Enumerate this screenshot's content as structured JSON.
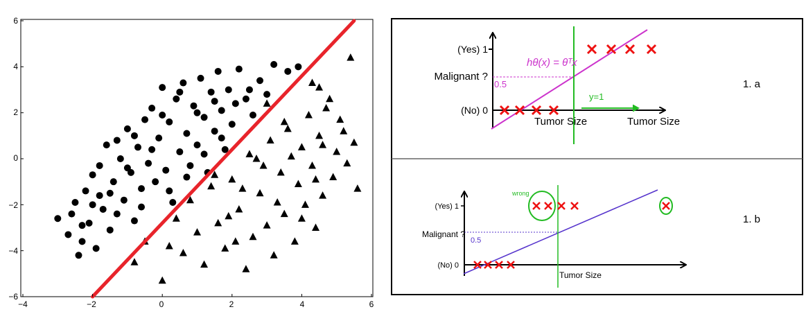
{
  "chart_data": {
    "type": "scatter",
    "xlim": [
      -4,
      6
    ],
    "ylim": [
      -6,
      6
    ],
    "x_ticks": [
      "−4",
      "−2",
      "0",
      "2",
      "4",
      "6"
    ],
    "y_ticks": [
      "6",
      "4",
      "2",
      "0",
      "−2",
      "−4",
      "−6"
    ],
    "series": [
      {
        "marker": "circle",
        "color": "#000000",
        "points": [
          [
            -3.0,
            -2.6
          ],
          [
            -2.7,
            -3.3
          ],
          [
            -2.6,
            -2.4
          ],
          [
            -2.4,
            -4.2
          ],
          [
            -2.3,
            -3.6
          ],
          [
            -2.2,
            -1.4
          ],
          [
            -2.1,
            -2.8
          ],
          [
            -2.0,
            -0.7
          ],
          [
            -1.9,
            -3.9
          ],
          [
            -1.8,
            -1.6
          ],
          [
            -1.7,
            -2.2
          ],
          [
            -1.6,
            0.6
          ],
          [
            -1.5,
            -3.1
          ],
          [
            -1.4,
            -1.0
          ],
          [
            -1.3,
            -2.4
          ],
          [
            -1.2,
            0.0
          ],
          [
            -1.1,
            -1.8
          ],
          [
            -1.0,
            1.3
          ],
          [
            -0.9,
            -0.6
          ],
          [
            -0.8,
            -2.7
          ],
          [
            -0.7,
            0.5
          ],
          [
            -0.6,
            -1.3
          ],
          [
            -0.5,
            1.7
          ],
          [
            -0.4,
            -0.2
          ],
          [
            -0.3,
            2.2
          ],
          [
            -0.2,
            -1.0
          ],
          [
            -0.1,
            0.9
          ],
          [
            0.0,
            3.1
          ],
          [
            0.1,
            -0.5
          ],
          [
            0.2,
            1.6
          ],
          [
            0.3,
            -1.9
          ],
          [
            0.4,
            2.6
          ],
          [
            0.5,
            0.3
          ],
          [
            0.6,
            3.3
          ],
          [
            0.7,
            1.1
          ],
          [
            0.8,
            -0.3
          ],
          [
            0.9,
            2.3
          ],
          [
            1.0,
            0.6
          ],
          [
            1.1,
            3.5
          ],
          [
            1.2,
            1.8
          ],
          [
            1.3,
            -0.6
          ],
          [
            1.4,
            2.9
          ],
          [
            1.5,
            1.2
          ],
          [
            1.6,
            3.8
          ],
          [
            1.7,
            2.1
          ],
          [
            1.8,
            0.4
          ],
          [
            1.9,
            3.0
          ],
          [
            2.0,
            1.5
          ],
          [
            2.2,
            3.9
          ],
          [
            2.4,
            2.6
          ],
          [
            2.6,
            1.9
          ],
          [
            2.8,
            3.4
          ],
          [
            3.0,
            2.8
          ],
          [
            3.2,
            4.1
          ],
          [
            3.6,
            3.8
          ],
          [
            3.9,
            4.0
          ],
          [
            -2.5,
            -1.9
          ],
          [
            -2.3,
            -2.9
          ],
          [
            -2.0,
            -2.0
          ],
          [
            -1.8,
            -0.3
          ],
          [
            -1.5,
            -1.5
          ],
          [
            -1.3,
            0.8
          ],
          [
            -1.0,
            -0.4
          ],
          [
            -0.8,
            1.0
          ],
          [
            -0.6,
            -2.1
          ],
          [
            -0.3,
            0.4
          ],
          [
            0.0,
            1.9
          ],
          [
            0.2,
            -1.4
          ],
          [
            0.5,
            2.9
          ],
          [
            0.7,
            -0.8
          ],
          [
            1.0,
            2.0
          ],
          [
            1.2,
            0.2
          ],
          [
            1.5,
            2.5
          ],
          [
            1.7,
            0.9
          ],
          [
            2.1,
            2.4
          ],
          [
            2.5,
            3.0
          ]
        ]
      },
      {
        "marker": "triangle",
        "color": "#000000",
        "points": [
          [
            -0.8,
            -4.5
          ],
          [
            -0.5,
            -3.6
          ],
          [
            0.0,
            -5.3
          ],
          [
            0.2,
            -3.8
          ],
          [
            0.4,
            -2.6
          ],
          [
            0.6,
            -4.1
          ],
          [
            0.8,
            -1.8
          ],
          [
            1.0,
            -3.2
          ],
          [
            1.2,
            -4.6
          ],
          [
            1.4,
            -1.2
          ],
          [
            1.6,
            -2.8
          ],
          [
            1.8,
            -3.9
          ],
          [
            2.0,
            -0.9
          ],
          [
            2.2,
            -2.2
          ],
          [
            2.4,
            -4.8
          ],
          [
            2.5,
            0.2
          ],
          [
            2.6,
            -3.4
          ],
          [
            2.8,
            -1.5
          ],
          [
            3.0,
            -2.9
          ],
          [
            3.1,
            0.8
          ],
          [
            3.2,
            -4.2
          ],
          [
            3.4,
            -0.6
          ],
          [
            3.5,
            -2.4
          ],
          [
            3.6,
            1.3
          ],
          [
            3.8,
            -3.6
          ],
          [
            3.9,
            -1.1
          ],
          [
            4.0,
            0.5
          ],
          [
            4.1,
            -2.0
          ],
          [
            4.2,
            1.9
          ],
          [
            4.3,
            -0.3
          ],
          [
            4.4,
            -3.0
          ],
          [
            4.5,
            1.0
          ],
          [
            4.6,
            -1.6
          ],
          [
            4.8,
            2.6
          ],
          [
            4.9,
            -0.8
          ],
          [
            5.0,
            0.3
          ],
          [
            5.1,
            1.7
          ],
          [
            5.3,
            -0.2
          ],
          [
            5.4,
            4.4
          ],
          [
            5.5,
            0.7
          ],
          [
            5.6,
            -1.3
          ],
          [
            1.9,
            -2.5
          ],
          [
            2.3,
            -1.3
          ],
          [
            2.7,
            0.0
          ],
          [
            3.3,
            -1.9
          ],
          [
            3.7,
            0.1
          ],
          [
            4.4,
            -0.9
          ],
          [
            4.7,
            2.2
          ],
          [
            5.2,
            1.2
          ],
          [
            2.1,
            -3.6
          ],
          [
            2.9,
            -0.3
          ],
          [
            3.5,
            1.6
          ],
          [
            4.0,
            -2.6
          ],
          [
            4.6,
            0.6
          ],
          [
            1.5,
            -0.7
          ],
          [
            3.0,
            2.4
          ],
          [
            4.3,
            3.3
          ],
          [
            4.5,
            3.1
          ]
        ]
      }
    ],
    "line": {
      "color": "#e8242b",
      "from": [
        -2,
        -6
      ],
      "to": [
        5.5,
        6
      ]
    }
  },
  "panel_a": {
    "yes_label": "(Yes) 1",
    "no_label": "(No) 0",
    "malignant_label": "Malignant ?",
    "threshold_label": "0.5",
    "hypothesis_label": "hθ(x) = θᵀx",
    "y1_label": "y=1",
    "tumor_size_mid_label": "Tumor Size",
    "tumor_size_end_label": "Tumor Size",
    "figure_label": "1. a"
  },
  "panel_b": {
    "yes_label": "(Yes) 1",
    "no_label": "(No) 0",
    "malignant_label": "Malignant ?",
    "threshold_label": "0.5",
    "wrong_label": "wrong",
    "tumor_size_label": "Tumor Size",
    "figure_label": "1. b"
  },
  "colors": {
    "magenta": "#cc33cc",
    "green": "#22bb22",
    "cross": "#ee1111",
    "blue_line": "#5533cc"
  }
}
